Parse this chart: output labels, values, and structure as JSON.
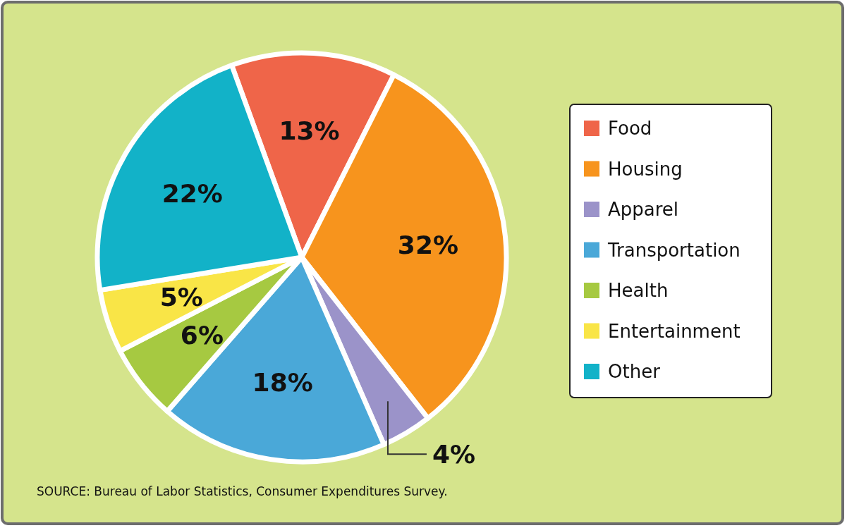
{
  "chart_data": {
    "type": "pie",
    "categories": [
      "Food",
      "Housing",
      "Apparel",
      "Transportation",
      "Health",
      "Entertainment",
      "Other"
    ],
    "values": [
      13,
      32,
      4,
      18,
      6,
      5,
      22
    ],
    "colors": [
      "#ef6549",
      "#f7941d",
      "#9b93c9",
      "#4aa8d8",
      "#a6c941",
      "#f9e547",
      "#12b2c8"
    ],
    "value_labels": [
      "13%",
      "32%",
      "4%",
      "18%",
      "6%",
      "5%",
      "22%"
    ],
    "legend": "right",
    "annotations": [
      "SOURCE: Bureau of Labor Statistics, Consumer Expenditures Survey."
    ]
  }
}
